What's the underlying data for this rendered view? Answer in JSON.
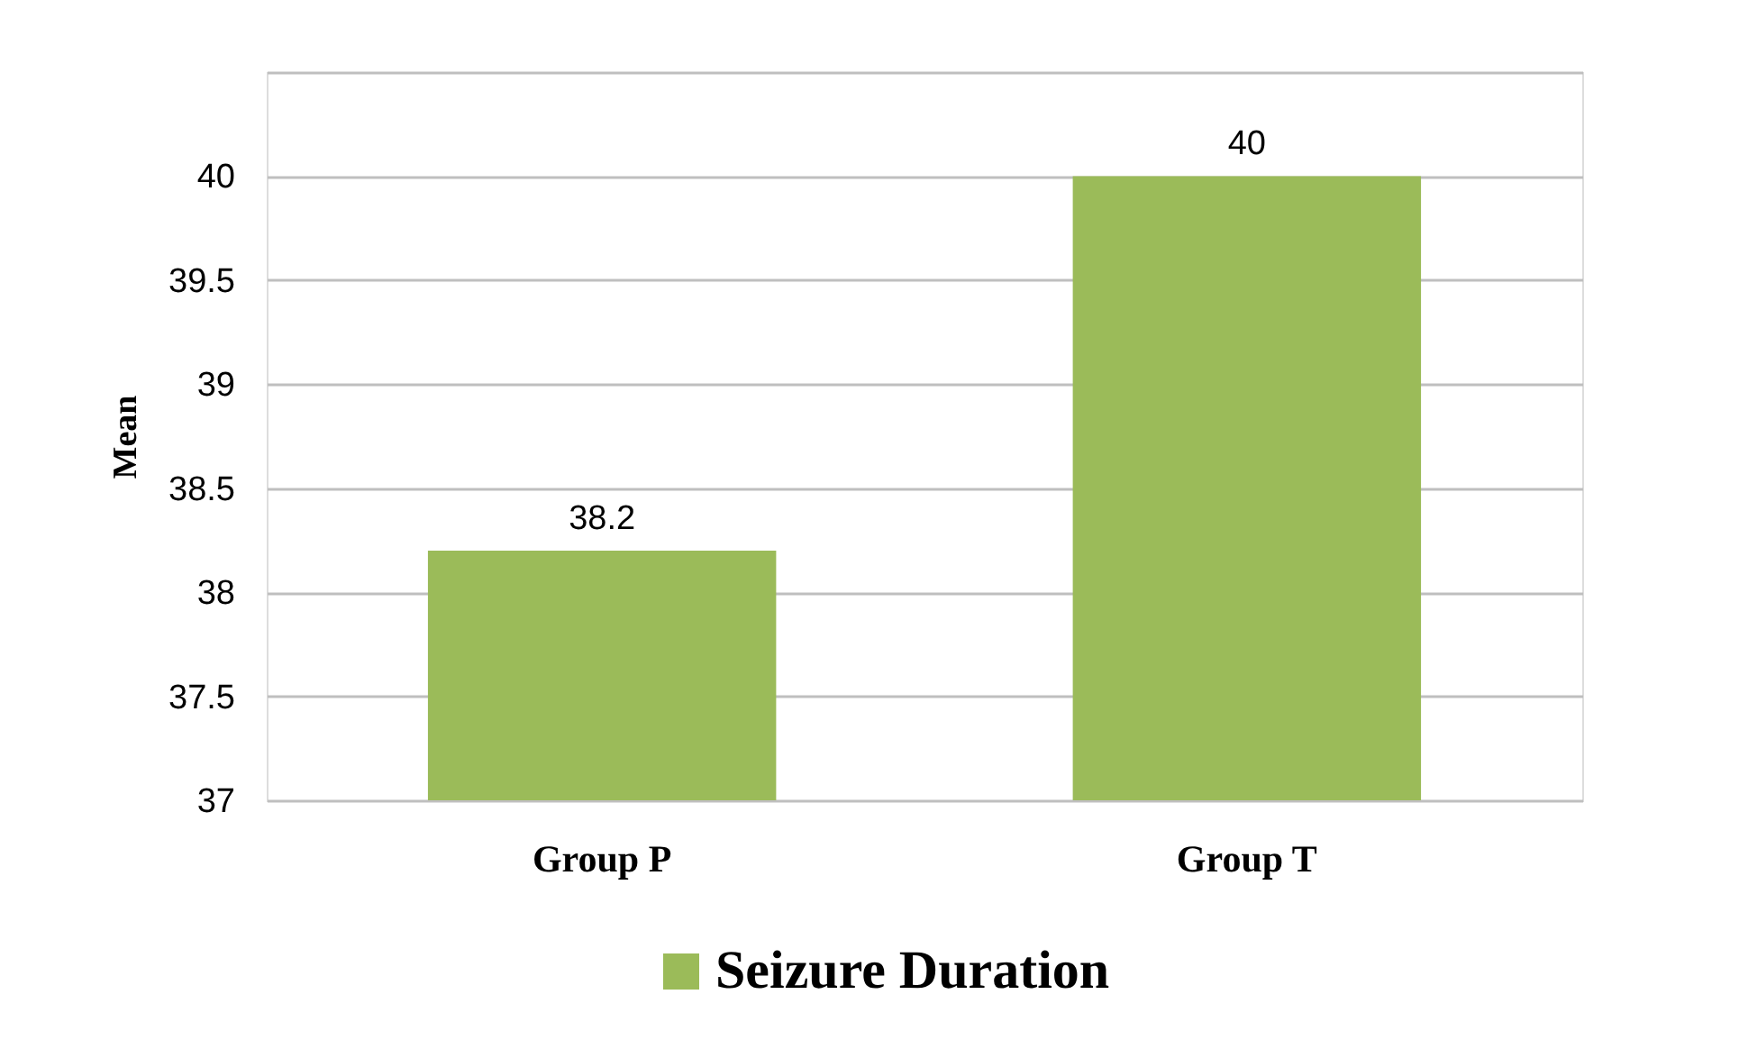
{
  "chart_data": {
    "type": "bar",
    "categories": [
      "Group P",
      "Group T"
    ],
    "series": [
      {
        "name": "Seizure Duration",
        "color": "#9bbb59",
        "values": [
          38.2,
          40
        ]
      }
    ],
    "ylabel": "Mean",
    "ylim": [
      37,
      40.5
    ],
    "yticks": [
      37,
      37.5,
      38,
      38.5,
      39,
      39.5,
      40,
      {
        "value": 40.5,
        "label": null
      }
    ],
    "grid": "y",
    "legend": "bottom",
    "data_labels": true
  }
}
